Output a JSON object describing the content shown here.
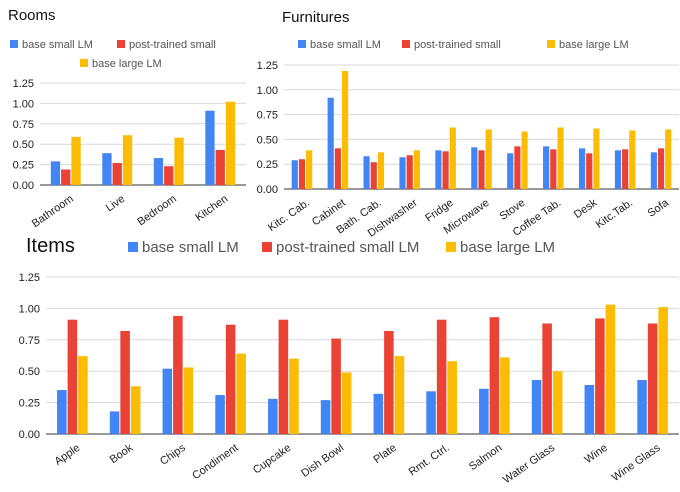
{
  "colors": {
    "base_small": "#4285f4",
    "post_trained": "#ea4335",
    "base_large": "#fbbc04"
  },
  "chart_data": [
    {
      "type": "bar",
      "title": "Rooms",
      "legend": [
        "base small LM",
        "post-trained small",
        "base large LM"
      ],
      "categories": [
        "Bathroom",
        "Live",
        "Bedroom",
        "Kitchen"
      ],
      "series": [
        {
          "name": "base small LM",
          "values": [
            0.29,
            0.39,
            0.33,
            0.91
          ]
        },
        {
          "name": "post-trained small",
          "values": [
            0.19,
            0.27,
            0.23,
            0.43
          ]
        },
        {
          "name": "base large LM",
          "values": [
            0.59,
            0.61,
            0.58,
            1.02
          ]
        }
      ],
      "ylim": [
        0,
        1.25
      ],
      "yticks": [
        "0.00",
        "0.25",
        "0.50",
        "0.75",
        "1.00",
        "1.25"
      ],
      "grid": true,
      "legend_position": "top"
    },
    {
      "type": "bar",
      "title": "Furnitures",
      "legend": [
        "base small LM",
        "post-trained small",
        "base large LM"
      ],
      "categories": [
        "Kitc. Cab.",
        "Cabinet",
        "Bath. Cab.",
        "Dishwasher",
        "Fridge",
        "Microwave",
        "Stove",
        "Coffee Tab.",
        "Desk",
        "Kitc.Tab.",
        "Sofa"
      ],
      "series": [
        {
          "name": "base small LM",
          "values": [
            0.29,
            0.92,
            0.33,
            0.32,
            0.39,
            0.42,
            0.36,
            0.43,
            0.41,
            0.39,
            0.37
          ]
        },
        {
          "name": "post-trained small",
          "values": [
            0.3,
            0.41,
            0.27,
            0.34,
            0.38,
            0.39,
            0.43,
            0.4,
            0.36,
            0.4,
            0.41
          ]
        },
        {
          "name": "base large LM",
          "values": [
            0.39,
            1.19,
            0.37,
            0.39,
            0.62,
            0.6,
            0.58,
            0.62,
            0.61,
            0.59,
            0.6
          ]
        }
      ],
      "ylim": [
        0,
        1.25
      ],
      "yticks": [
        "0.00",
        "0.25",
        "0.50",
        "0.75",
        "1.00",
        "1.25"
      ],
      "grid": true,
      "legend_position": "top"
    },
    {
      "type": "bar",
      "title": "Items",
      "legend": [
        "base small LM",
        "post-trained small LM",
        "base large LM"
      ],
      "categories": [
        "Apple",
        "Book",
        "Chips",
        "Condiment",
        "Cupcake",
        "Dish Bowl",
        "Plate",
        "Rmt. Ctrl.",
        "Salmon",
        "Water Glass",
        "Wine",
        "Wine Glass"
      ],
      "series": [
        {
          "name": "base small LM",
          "values": [
            0.35,
            0.18,
            0.52,
            0.31,
            0.28,
            0.27,
            0.32,
            0.34,
            0.36,
            0.43,
            0.39,
            0.43
          ]
        },
        {
          "name": "post-trained small LM",
          "values": [
            0.91,
            0.82,
            0.94,
            0.87,
            0.91,
            0.76,
            0.82,
            0.91,
            0.93,
            0.88,
            0.92,
            0.88
          ]
        },
        {
          "name": "base large LM",
          "values": [
            0.62,
            0.38,
            0.53,
            0.64,
            0.6,
            0.49,
            0.62,
            0.58,
            0.61,
            0.5,
            1.03,
            1.01
          ]
        }
      ],
      "ylim": [
        0,
        1.25
      ],
      "yticks": [
        "0.00",
        "0.25",
        "0.50",
        "0.75",
        "1.00",
        "1.25"
      ],
      "grid": true,
      "legend_position": "top"
    }
  ]
}
